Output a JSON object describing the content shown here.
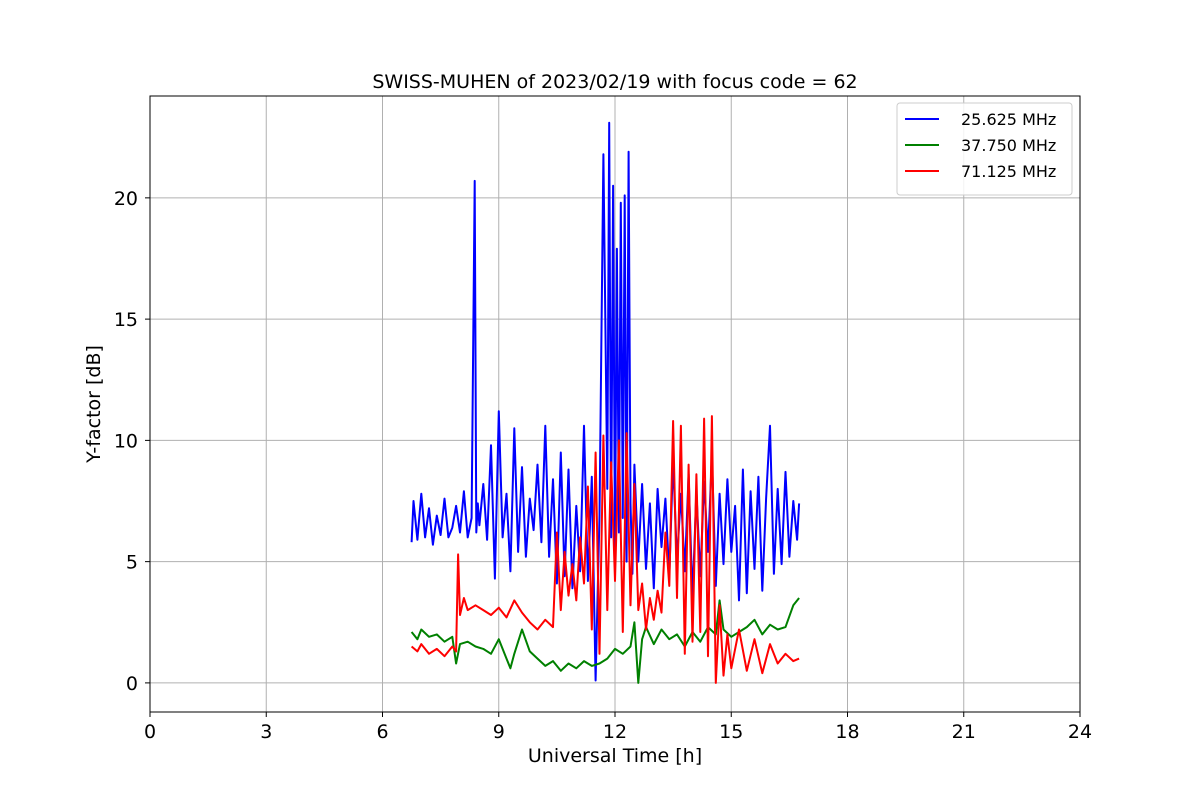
{
  "chart_data": {
    "type": "line",
    "title": "SWISS-MUHEN of 2023/02/19 with focus code = 62",
    "xlabel": "Universal Time [h]",
    "ylabel": "Y-factor [dB]",
    "xlim": [
      0,
      24
    ],
    "ylim": [
      -1.2,
      24.2
    ],
    "xticks": [
      0,
      3,
      6,
      9,
      12,
      15,
      18,
      21,
      24
    ],
    "yticks": [
      0,
      5,
      10,
      15,
      20
    ],
    "grid": true,
    "legend_position": "top-right",
    "series": [
      {
        "name": "25.625 MHz",
        "color": "#0000ff",
        "x": [
          6.75,
          6.8,
          6.9,
          7.0,
          7.1,
          7.2,
          7.3,
          7.4,
          7.5,
          7.6,
          7.7,
          7.8,
          7.9,
          8.0,
          8.1,
          8.2,
          8.3,
          8.38,
          8.42,
          8.46,
          8.5,
          8.6,
          8.7,
          8.8,
          8.9,
          9.0,
          9.1,
          9.2,
          9.3,
          9.4,
          9.5,
          9.6,
          9.7,
          9.8,
          9.9,
          10.0,
          10.1,
          10.2,
          10.3,
          10.4,
          10.5,
          10.6,
          10.7,
          10.8,
          10.9,
          11.0,
          11.1,
          11.2,
          11.3,
          11.4,
          11.5,
          11.6,
          11.7,
          11.8,
          11.85,
          11.9,
          11.95,
          12.0,
          12.05,
          12.1,
          12.15,
          12.2,
          12.25,
          12.3,
          12.35,
          12.4,
          12.45,
          12.5,
          12.6,
          12.7,
          12.8,
          12.9,
          13.0,
          13.1,
          13.2,
          13.3,
          13.4,
          13.5,
          13.6,
          13.7,
          13.8,
          13.9,
          14.0,
          14.1,
          14.2,
          14.3,
          14.4,
          14.5,
          14.6,
          14.7,
          14.8,
          14.9,
          15.0,
          15.1,
          15.2,
          15.3,
          15.4,
          15.5,
          15.6,
          15.7,
          15.8,
          15.9,
          16.0,
          16.1,
          16.2,
          16.3,
          16.4,
          16.5,
          16.6,
          16.7,
          16.75
        ],
        "y": [
          5.8,
          7.5,
          5.9,
          7.8,
          6.0,
          7.2,
          5.7,
          6.9,
          6.1,
          7.6,
          6.0,
          6.4,
          7.3,
          6.2,
          7.9,
          6.0,
          6.8,
          20.7,
          6.2,
          7.4,
          6.5,
          8.2,
          5.9,
          9.8,
          4.3,
          11.2,
          6.0,
          7.8,
          4.6,
          10.5,
          5.4,
          8.9,
          5.2,
          7.6,
          6.3,
          9.0,
          5.8,
          10.6,
          5.2,
          8.4,
          4.1,
          9.5,
          4.4,
          8.8,
          3.9,
          7.3,
          4.6,
          10.6,
          4.2,
          8.5,
          0.1,
          6.9,
          21.8,
          8.0,
          23.1,
          6.0,
          20.5,
          5.4,
          17.9,
          6.2,
          19.8,
          6.8,
          20.1,
          5.0,
          21.9,
          7.4,
          4.5,
          9.0,
          5.0,
          8.2,
          4.7,
          7.4,
          3.9,
          8.0,
          5.6,
          7.6,
          4.4,
          9.2,
          5.0,
          7.8,
          4.6,
          8.6,
          3.5,
          7.9,
          4.4,
          8.3,
          5.4,
          9.4,
          4.0,
          7.8,
          4.9,
          8.4,
          5.4,
          7.3,
          3.4,
          8.8,
          3.7,
          7.9,
          4.7,
          8.5,
          3.8,
          7.6,
          10.6,
          4.5,
          8.0,
          4.9,
          8.7,
          5.2,
          7.5,
          5.9,
          7.4
        ]
      },
      {
        "name": "37.750 MHz",
        "color": "#008000",
        "x": [
          6.75,
          6.9,
          7.0,
          7.2,
          7.4,
          7.6,
          7.8,
          7.9,
          8.0,
          8.2,
          8.4,
          8.6,
          8.8,
          9.0,
          9.2,
          9.3,
          9.4,
          9.6,
          9.8,
          10.0,
          10.2,
          10.4,
          10.6,
          10.8,
          11.0,
          11.2,
          11.4,
          11.6,
          11.8,
          12.0,
          12.2,
          12.4,
          12.5,
          12.6,
          12.7,
          12.8,
          13.0,
          13.2,
          13.4,
          13.6,
          13.8,
          14.0,
          14.2,
          14.4,
          14.6,
          14.7,
          14.8,
          15.0,
          15.2,
          15.4,
          15.6,
          15.8,
          16.0,
          16.2,
          16.4,
          16.6,
          16.75
        ],
        "y": [
          2.1,
          1.8,
          2.2,
          1.9,
          2.0,
          1.7,
          1.9,
          0.8,
          1.6,
          1.7,
          1.5,
          1.4,
          1.2,
          1.8,
          1.0,
          0.6,
          1.2,
          2.2,
          1.3,
          1.0,
          0.7,
          0.9,
          0.5,
          0.8,
          0.6,
          0.9,
          0.7,
          0.8,
          1.0,
          1.4,
          1.2,
          1.5,
          2.5,
          0.0,
          1.8,
          2.3,
          1.6,
          2.2,
          1.8,
          2.0,
          1.5,
          2.1,
          1.7,
          2.3,
          2.0,
          3.4,
          2.2,
          1.9,
          2.1,
          2.3,
          2.6,
          2.0,
          2.4,
          2.2,
          2.3,
          3.2,
          3.5
        ]
      },
      {
        "name": "71.125 MHz",
        "color": "#ff0000",
        "x": [
          6.75,
          6.9,
          7.0,
          7.2,
          7.4,
          7.6,
          7.8,
          7.9,
          7.95,
          8.0,
          8.1,
          8.2,
          8.4,
          8.6,
          8.8,
          9.0,
          9.2,
          9.4,
          9.6,
          9.8,
          10.0,
          10.2,
          10.4,
          10.5,
          10.6,
          10.7,
          10.8,
          10.9,
          11.0,
          11.1,
          11.2,
          11.3,
          11.4,
          11.5,
          11.6,
          11.7,
          11.8,
          11.9,
          12.0,
          12.1,
          12.2,
          12.3,
          12.4,
          12.5,
          12.6,
          12.7,
          12.8,
          12.9,
          13.0,
          13.1,
          13.2,
          13.3,
          13.4,
          13.5,
          13.6,
          13.7,
          13.8,
          13.9,
          14.0,
          14.1,
          14.2,
          14.3,
          14.4,
          14.5,
          14.6,
          14.7,
          14.8,
          14.9,
          15.0,
          15.2,
          15.4,
          15.6,
          15.8,
          16.0,
          16.2,
          16.4,
          16.6,
          16.75
        ],
        "y": [
          1.5,
          1.3,
          1.6,
          1.2,
          1.4,
          1.1,
          1.5,
          1.3,
          5.3,
          2.8,
          3.5,
          3.0,
          3.2,
          3.0,
          2.8,
          3.1,
          2.7,
          3.4,
          2.9,
          2.5,
          2.2,
          2.6,
          2.3,
          6.2,
          3.0,
          5.4,
          3.6,
          4.9,
          3.4,
          6.0,
          4.1,
          8.1,
          2.2,
          9.5,
          1.2,
          10.2,
          3.0,
          9.1,
          4.2,
          10.0,
          2.1,
          10.3,
          3.2,
          8.2,
          3.0,
          4.1,
          2.2,
          3.5,
          2.6,
          3.8,
          2.9,
          6.2,
          4.0,
          10.8,
          3.5,
          10.6,
          1.2,
          9.0,
          1.7,
          8.6,
          2.1,
          10.9,
          1.1,
          11.0,
          0.0,
          3.2,
          0.3,
          2.0,
          0.6,
          2.2,
          0.5,
          1.8,
          0.4,
          1.6,
          0.8,
          1.2,
          0.9,
          1.0
        ]
      }
    ]
  }
}
